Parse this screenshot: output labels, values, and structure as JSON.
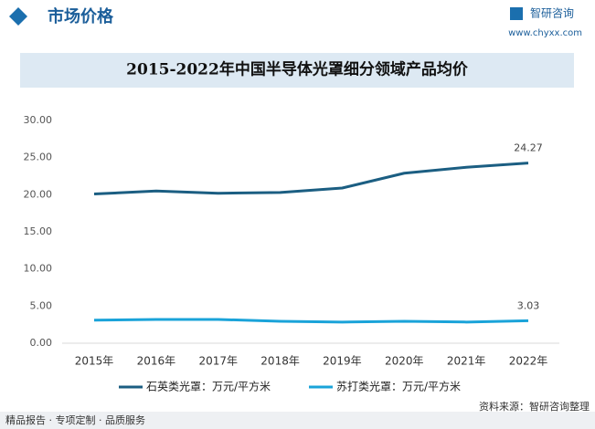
{
  "header": {
    "section_title": "市场价格",
    "brand": "智研咨询",
    "website": "www.chyxx.com"
  },
  "footer": {
    "slogan": "精品报告 · 专项定制 · 品质服务",
    "source": "资料来源：智研咨询整理"
  },
  "chart_data": {
    "type": "line",
    "title": "2015-2022年中国半导体光罩细分领域产品均价",
    "categories": [
      "2015年",
      "2016年",
      "2017年",
      "2018年",
      "2019年",
      "2020年",
      "2021年",
      "2022年"
    ],
    "series": [
      {
        "name": "石英类光罩：万元/平方米",
        "color": "#1b5e82",
        "values": [
          20.1,
          20.5,
          20.2,
          20.3,
          20.9,
          22.9,
          23.7,
          24.27
        ]
      },
      {
        "name": "苏打类光罩：万元/平方米",
        "color": "#1aa3d9",
        "values": [
          3.1,
          3.2,
          3.2,
          2.95,
          2.85,
          2.95,
          2.85,
          3.03
        ]
      }
    ],
    "ylim": [
      0,
      30
    ],
    "yticks": [
      {
        "value": 0,
        "label": "0.00"
      },
      {
        "value": 5,
        "label": "5.00"
      },
      {
        "value": 10,
        "label": "10.00"
      },
      {
        "value": 15,
        "label": "15.00"
      },
      {
        "value": 20,
        "label": "20.00"
      },
      {
        "value": 25,
        "label": "25.00"
      },
      {
        "value": 30,
        "label": "30.00"
      }
    ],
    "legend": "bottom"
  }
}
